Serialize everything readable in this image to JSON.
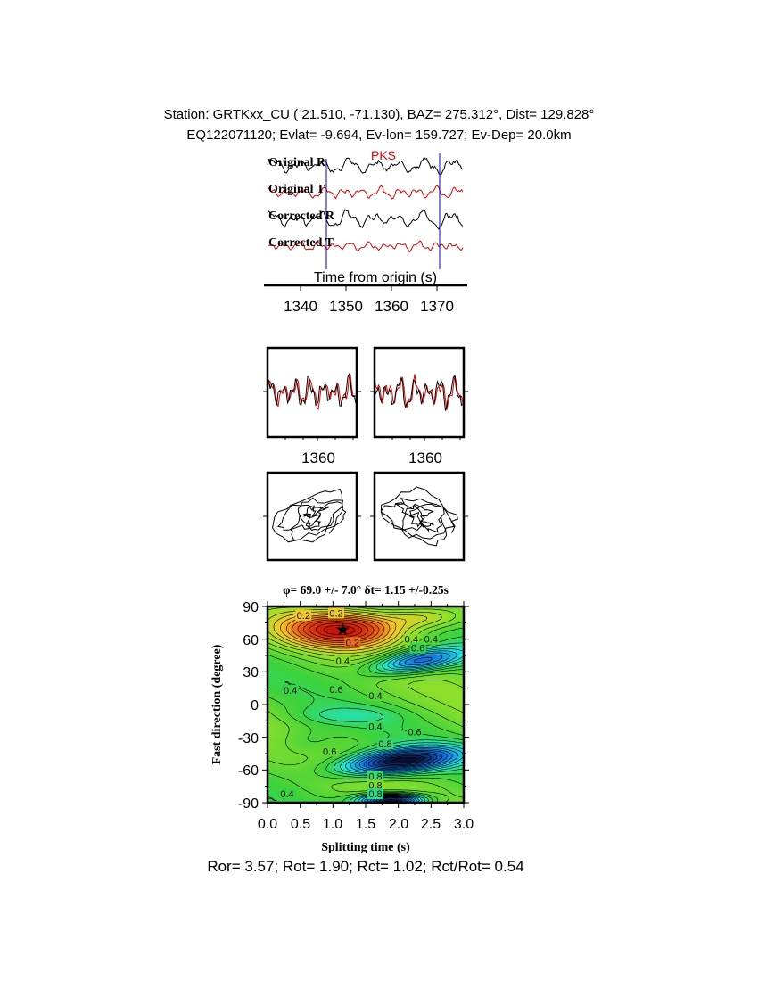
{
  "header": {
    "line1": "Station: GRTKxx_CU (  21.510,  -71.130), BAZ=  275.312°, Dist=  129.828°",
    "line2": "EQ122071120; Evlat=  -9.694, Ev-lon= 159.727; Ev-Dep= 20.0km"
  },
  "traces_panel": {
    "labels": [
      "Original R",
      "Original T",
      "Corrected R",
      "Corrected T"
    ],
    "phase_label": "PKS",
    "xlabel": "Time from origin (s)",
    "ticks": [
      "1340",
      "1350",
      "1360",
      "1370"
    ],
    "colors": {
      "radial": "#000000",
      "transverse": "#e00000",
      "marker": "#0000cc"
    }
  },
  "window_panels": {
    "left_tick": "1360",
    "right_tick": "1360"
  },
  "grid_panel": {
    "title": "φ= 69.0 +/- 7.0° δt= 1.15 +/-0.25s",
    "xlabel": "Splitting time (s)",
    "ylabel": "Fast direction (degree)",
    "xticks": [
      "0.0",
      "0.5",
      "1.0",
      "1.5",
      "2.0",
      "2.5",
      "3.0"
    ],
    "yticks": [
      "90",
      "60",
      "30",
      "0",
      "-30",
      "-60",
      "-90"
    ],
    "contour_labels": [
      "0.2",
      "0.2",
      "0.2",
      "0.4",
      "0.4",
      "0.6",
      "0.4",
      "0.6",
      "0.4",
      "0.4",
      "0.6",
      "0.8",
      "0.6",
      "0.8",
      "0.8",
      "0.8",
      "0.4",
      "0.4"
    ]
  },
  "chart_data": {
    "type": "heatmap",
    "title": "φ= 69.0 +/- 7.0° δt= 1.15 +/-0.25s",
    "xlabel": "Splitting time (s)",
    "ylabel": "Fast direction (degree)",
    "xlim": [
      0.0,
      3.0
    ],
    "ylim": [
      -90,
      90
    ],
    "best_fit": {
      "dt": 1.15,
      "phi": 69.0,
      "dt_err": 0.25,
      "phi_err": 7.0
    },
    "minimum_marker": "star"
  },
  "footer": {
    "text": "Ror= 3.57; Rot= 1.90; Rct= 1.02; Rct/Rot= 0.54"
  }
}
